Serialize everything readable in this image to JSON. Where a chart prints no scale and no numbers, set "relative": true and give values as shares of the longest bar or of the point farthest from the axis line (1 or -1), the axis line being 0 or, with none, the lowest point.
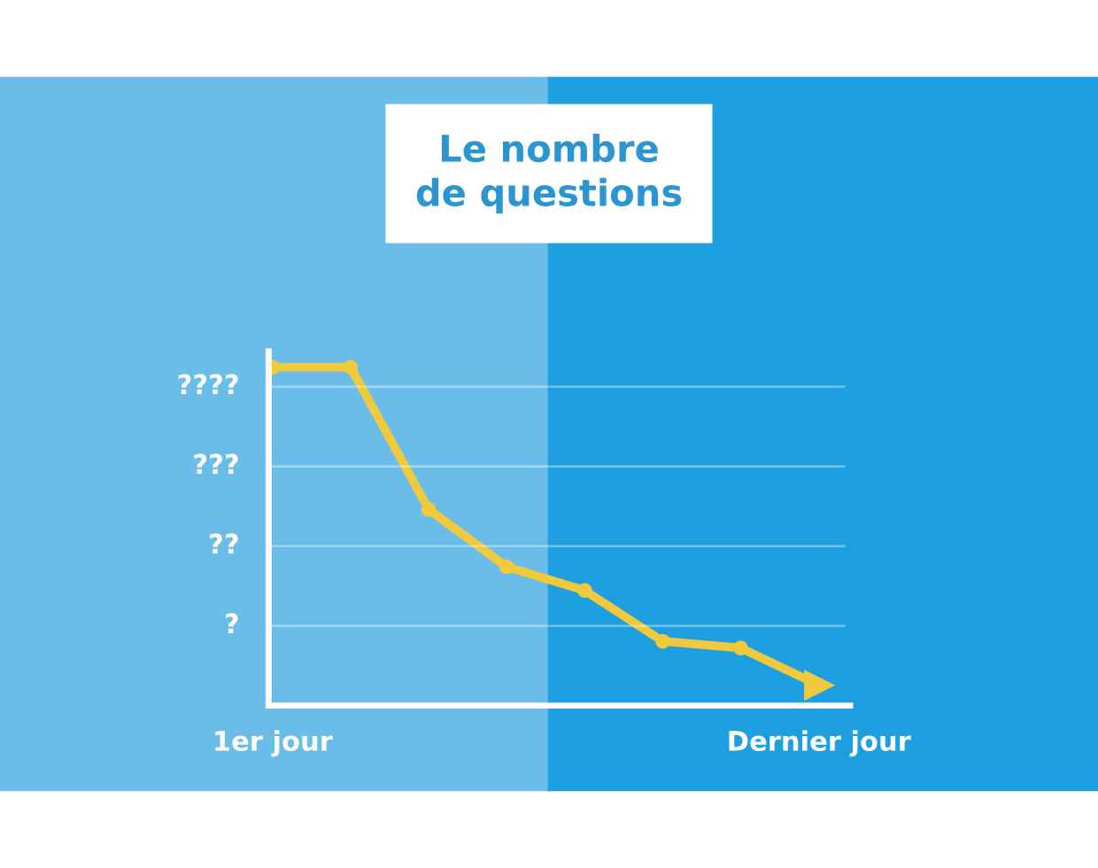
{
  "chart_data": {
    "type": "line",
    "title": "Le nombre\nde questions",
    "relative": true,
    "categories": [
      "1er jour",
      null,
      null,
      null,
      null,
      null,
      null,
      "Dernier jour"
    ],
    "series": [
      {
        "color": "#f0c93c",
        "values": [
          1,
          1,
          0.58,
          0.41,
          0.34,
          0.19,
          0.17,
          0.06
        ]
      }
    ],
    "annotations": [
      "?",
      "??",
      "???",
      "????"
    ],
    "grid": "y",
    "marker": "circle",
    "line_style": "solid"
  }
}
